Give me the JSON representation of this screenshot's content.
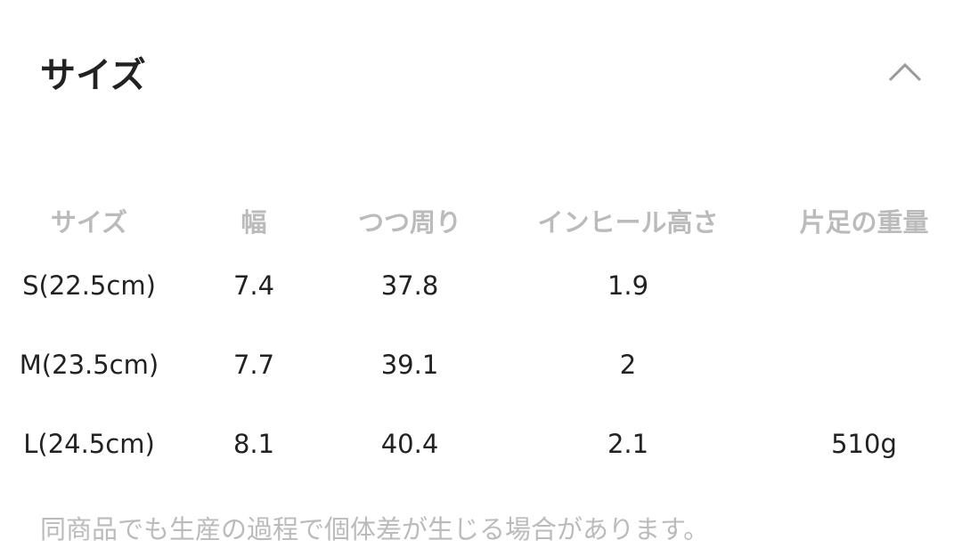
{
  "section": {
    "title": "サイズ",
    "collapse_icon": "chevron-up-icon"
  },
  "table": {
    "headers": [
      "サイズ",
      "幅",
      "つつ周り",
      "インヒール高さ",
      "片足の重量"
    ],
    "rows": [
      [
        "S(22.5cm)",
        "7.4",
        "37.8",
        "1.9",
        ""
      ],
      [
        "M(23.5cm)",
        "7.7",
        "39.1",
        "2",
        ""
      ],
      [
        "L(24.5cm)",
        "8.1",
        "40.4",
        "2.1",
        "510g"
      ]
    ]
  },
  "note": "同商品でも生産の過程で個体差が生じる場合があります。"
}
